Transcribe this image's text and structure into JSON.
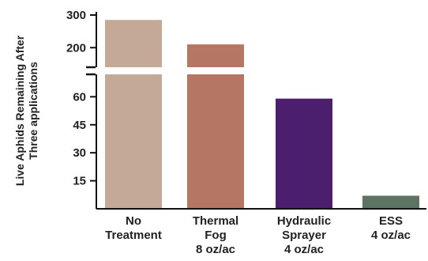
{
  "chart_data": {
    "type": "bar",
    "title": "",
    "ylabel_lines": [
      "Live Aphids Remaining After",
      "Three applications"
    ],
    "xlabel": "",
    "categories": [
      [
        "No",
        "Treatment"
      ],
      [
        "Thermal",
        "Fog",
        "8 oz/ac"
      ],
      [
        "Hydraulic",
        "Sprayer",
        "4 oz/ac"
      ],
      [
        "ESS",
        "4 oz/ac"
      ]
    ],
    "values": [
      285,
      210,
      59,
      7
    ],
    "colors": [
      "#c3a996",
      "#b57763",
      "#4b1e6e",
      "#5e7463"
    ],
    "axis_break": {
      "lower_range": [
        0,
        72
      ],
      "upper_range": [
        140,
        300
      ]
    },
    "y_ticks_lower": [
      "15",
      "30",
      "45",
      "60"
    ],
    "y_ticks_upper": [
      "200",
      "300"
    ],
    "grid": false,
    "legend": "none"
  }
}
